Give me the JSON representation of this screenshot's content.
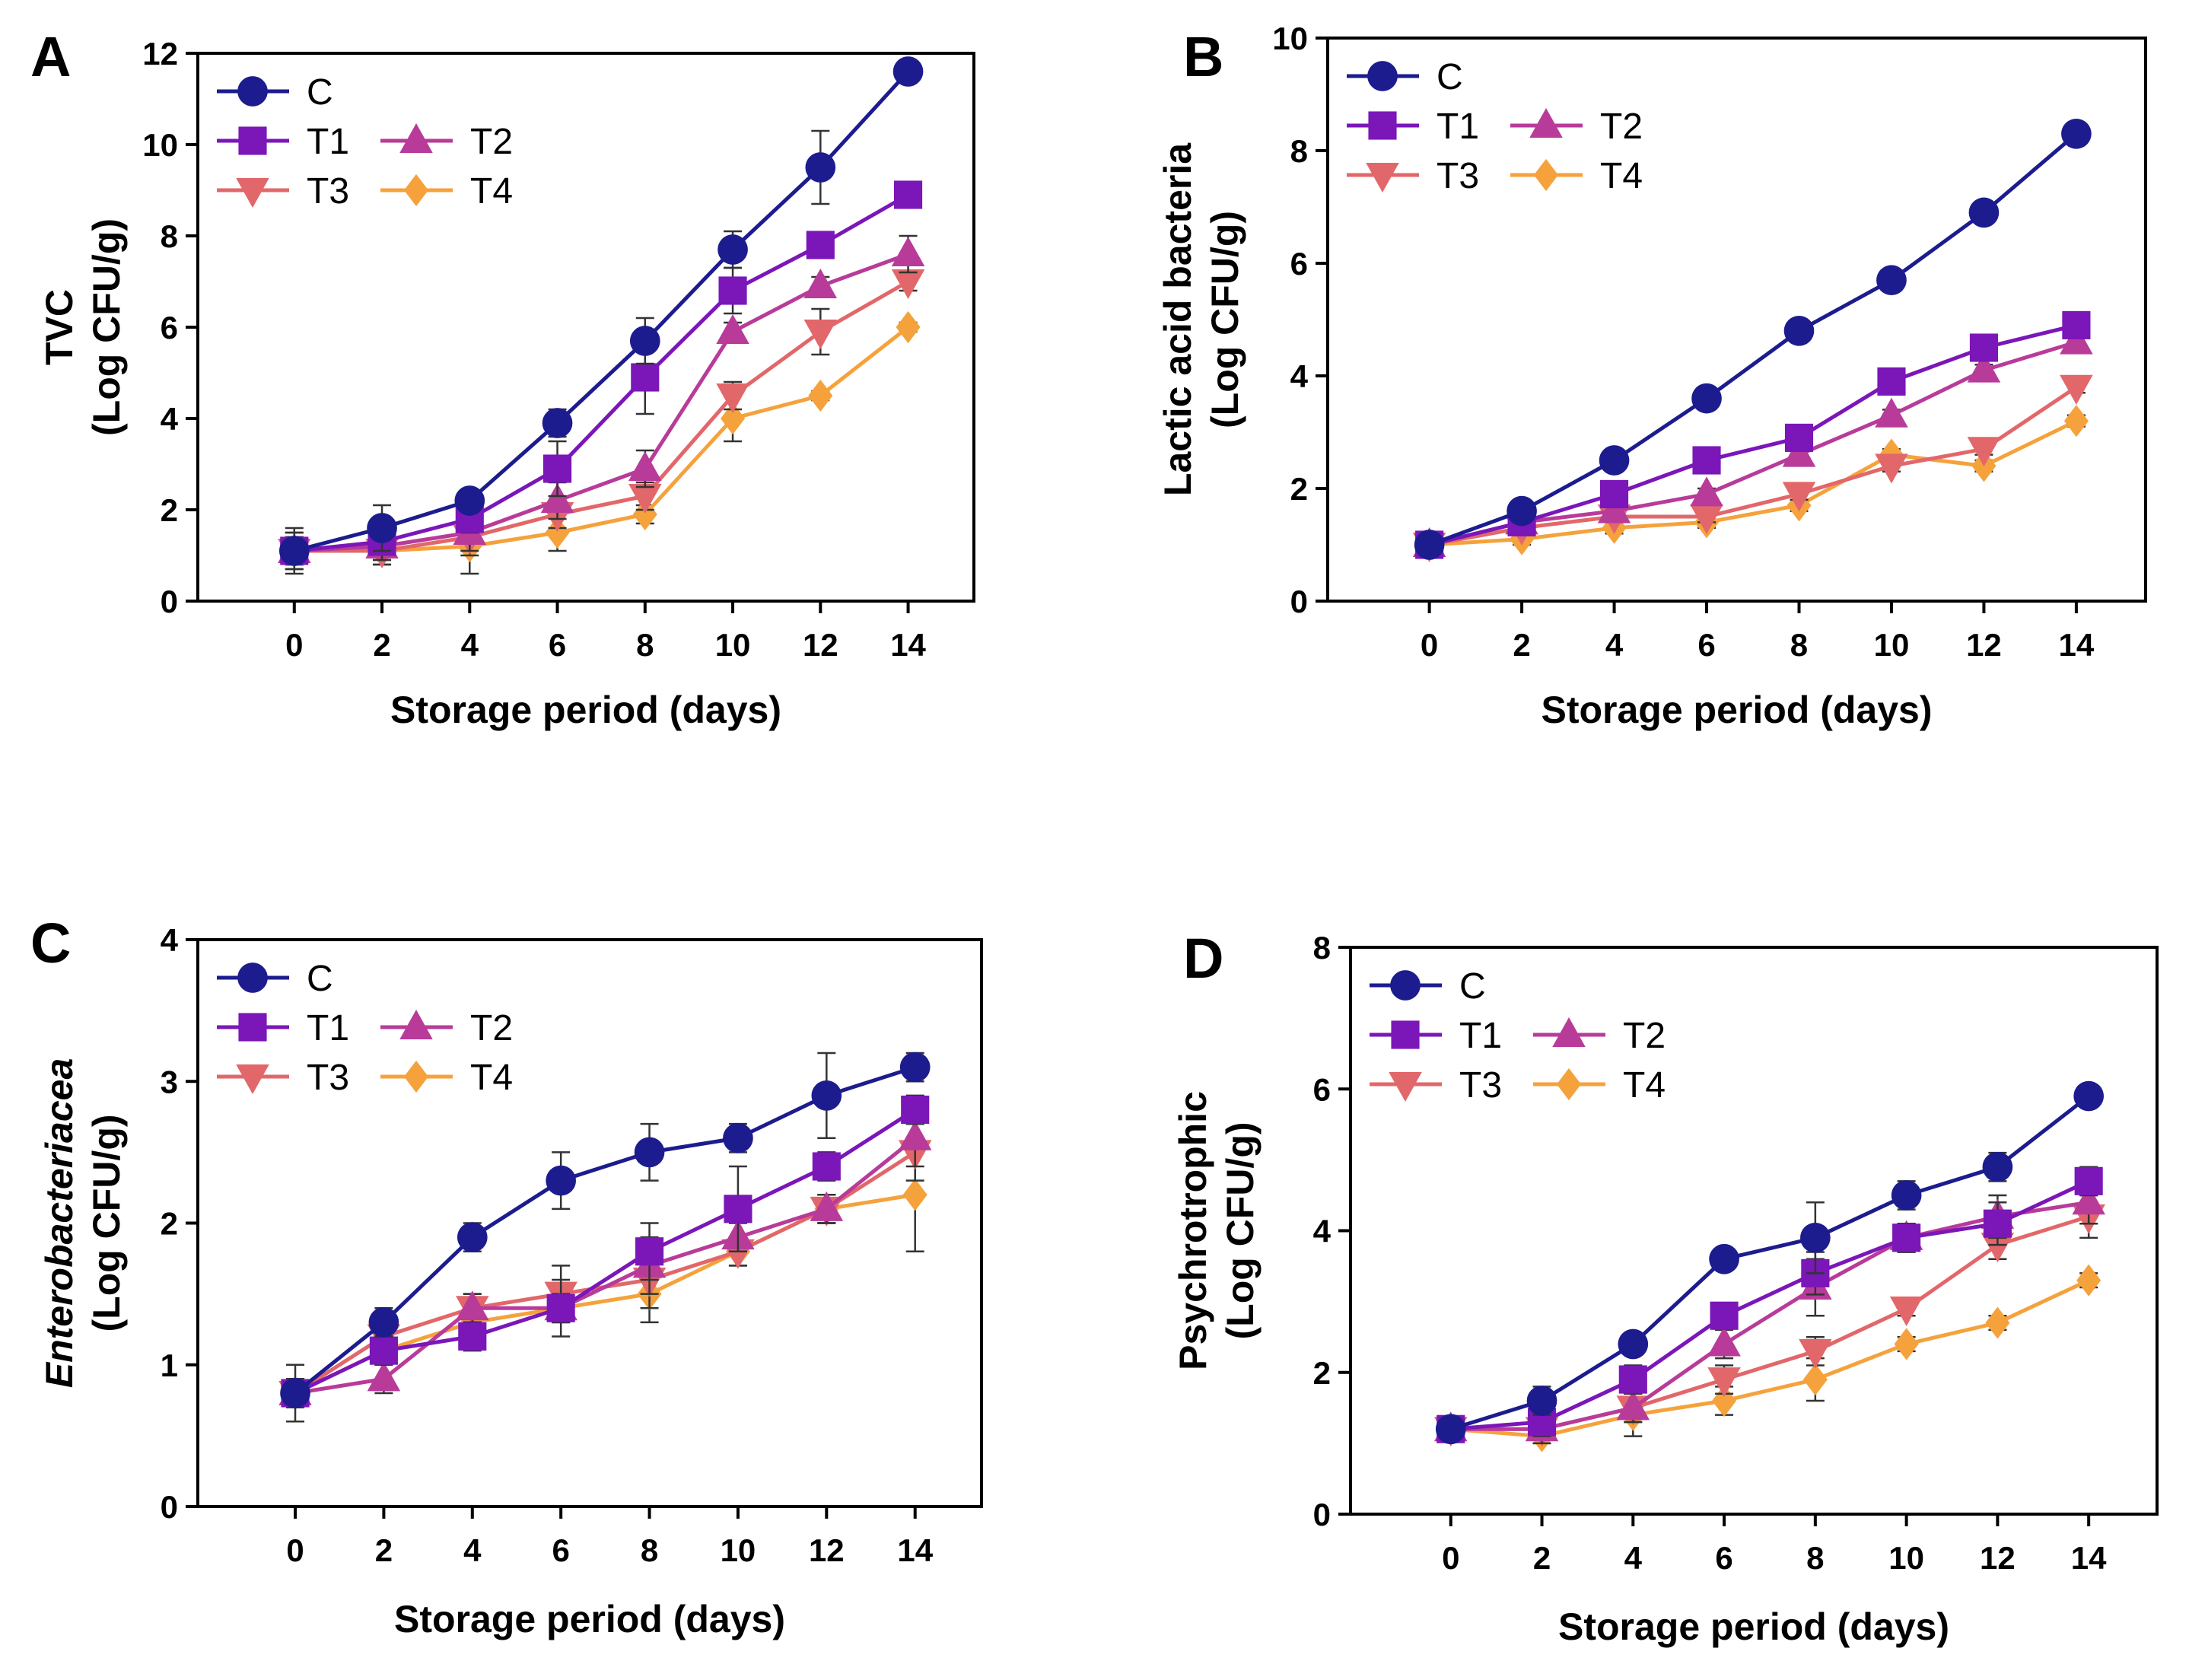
{
  "series_styles": [
    {
      "name": "C",
      "color": "#1c1c8f",
      "marker": "circle"
    },
    {
      "name": "T1",
      "color": "#7b16b8",
      "marker": "square"
    },
    {
      "name": "T2",
      "color": "#b83b9a",
      "marker": "triangle-up"
    },
    {
      "name": "T3",
      "color": "#e2676a",
      "marker": "triangle-down"
    },
    {
      "name": "T4",
      "color": "#f5a23c",
      "marker": "diamond"
    }
  ],
  "chart_data": [
    {
      "panel": "A",
      "type": "line",
      "xlabel": "Storage period (days)",
      "ylabel_lines": [
        "TVC",
        "(Log CFU/g)"
      ],
      "ylabel_italic_first": false,
      "x": [
        0,
        2,
        4,
        6,
        8,
        10,
        12,
        14
      ],
      "xticks": [
        "0",
        "2",
        "4",
        "6",
        "8",
        "10",
        "12",
        "14"
      ],
      "ylim": [
        0,
        12
      ],
      "yticks": [
        0,
        2,
        4,
        6,
        8,
        10,
        12
      ],
      "series": [
        {
          "name": "C",
          "values": [
            1.1,
            1.6,
            2.2,
            3.9,
            5.7,
            7.7,
            9.5,
            11.6
          ],
          "errors": [
            0.5,
            0.5,
            0.1,
            0.3,
            0.5,
            0.4,
            0.8,
            0.1
          ]
        },
        {
          "name": "T1",
          "values": [
            1.1,
            1.3,
            1.8,
            2.9,
            4.9,
            6.8,
            7.8,
            8.9
          ],
          "errors": [
            0.4,
            0.4,
            0.3,
            0.6,
            0.8,
            0.5,
            0.2,
            0.1
          ]
        },
        {
          "name": "T2",
          "values": [
            1.1,
            1.2,
            1.5,
            2.2,
            2.9,
            5.9,
            6.9,
            7.6
          ],
          "errors": [
            0.3,
            0.3,
            0.4,
            0.4,
            0.4,
            0.2,
            0.2,
            0.4
          ]
        },
        {
          "name": "T3",
          "values": [
            1.1,
            1.1,
            1.4,
            1.9,
            2.3,
            4.5,
            5.9,
            7.0
          ],
          "errors": [
            0.3,
            0.3,
            0.4,
            0.3,
            0.3,
            0.3,
            0.5,
            0.2
          ]
        },
        {
          "name": "T4",
          "values": [
            1.1,
            1.1,
            1.2,
            1.5,
            1.9,
            4.0,
            4.5,
            6.0
          ],
          "errors": [
            0.4,
            0.3,
            0.6,
            0.4,
            0.2,
            0.5,
            0.1,
            0.1
          ]
        }
      ]
    },
    {
      "panel": "B",
      "type": "line",
      "xlabel": "Storage period (days)",
      "ylabel_lines": [
        "Lactic acid bacteria",
        "(Log CFU/g)"
      ],
      "ylabel_italic_first": false,
      "x": [
        0,
        2,
        4,
        6,
        8,
        10,
        12,
        14
      ],
      "xticks": [
        "0",
        "2",
        "4",
        "6",
        "8",
        "10",
        "12",
        "14"
      ],
      "ylim": [
        0,
        10
      ],
      "yticks": [
        0,
        2,
        4,
        6,
        8,
        10
      ],
      "series": [
        {
          "name": "C",
          "values": [
            1.0,
            1.6,
            2.5,
            3.6,
            4.8,
            5.7,
            6.9,
            8.3
          ],
          "errors": [
            0.1,
            0.1,
            0.1,
            0.1,
            0.1,
            0.1,
            0.1,
            0.1
          ]
        },
        {
          "name": "T1",
          "values": [
            1.0,
            1.4,
            1.9,
            2.5,
            2.9,
            3.9,
            4.5,
            4.9
          ],
          "errors": [
            0.1,
            0.1,
            0.1,
            0.1,
            0.1,
            0.1,
            0.1,
            0.1
          ]
        },
        {
          "name": "T2",
          "values": [
            1.0,
            1.4,
            1.6,
            1.9,
            2.6,
            3.3,
            4.1,
            4.6
          ],
          "errors": [
            0.1,
            0.1,
            0.1,
            0.1,
            0.1,
            0.1,
            0.1,
            0.1
          ]
        },
        {
          "name": "T3",
          "values": [
            1.0,
            1.3,
            1.5,
            1.5,
            1.9,
            2.4,
            2.7,
            3.8
          ],
          "errors": [
            0.1,
            0.1,
            0.1,
            0.1,
            0.1,
            0.1,
            0.1,
            0.1
          ]
        },
        {
          "name": "T4",
          "values": [
            1.0,
            1.1,
            1.3,
            1.4,
            1.7,
            2.6,
            2.4,
            3.2
          ],
          "errors": [
            0.1,
            0.1,
            0.1,
            0.1,
            0.1,
            0.1,
            0.1,
            0.1
          ]
        }
      ]
    },
    {
      "panel": "C",
      "type": "line",
      "xlabel": "Storage period (days)",
      "ylabel_lines": [
        "Enterobacteriacea",
        "(Log CFU/g)"
      ],
      "ylabel_italic_first": true,
      "x": [
        0,
        2,
        4,
        6,
        8,
        10,
        12,
        14
      ],
      "xticks": [
        "0",
        "2",
        "4",
        "6",
        "8",
        "10",
        "12",
        "14"
      ],
      "ylim": [
        0,
        4
      ],
      "yticks": [
        0,
        1,
        2,
        3,
        4
      ],
      "series": [
        {
          "name": "C",
          "values": [
            0.8,
            1.3,
            1.9,
            2.3,
            2.5,
            2.6,
            2.9,
            3.1
          ],
          "errors": [
            0.2,
            0.1,
            0.1,
            0.2,
            0.2,
            0.1,
            0.3,
            0.1
          ]
        },
        {
          "name": "T1",
          "values": [
            0.8,
            1.1,
            1.2,
            1.4,
            1.8,
            2.1,
            2.4,
            2.8
          ],
          "errors": [
            0.1,
            0.1,
            0.1,
            0.2,
            0.2,
            0.3,
            0.1,
            0.1
          ]
        },
        {
          "name": "T2",
          "values": [
            0.8,
            0.9,
            1.4,
            1.4,
            1.7,
            1.9,
            2.1,
            2.6
          ],
          "errors": [
            0.1,
            0.1,
            0.1,
            0.1,
            0.2,
            0.1,
            0.1,
            0.2
          ]
        },
        {
          "name": "T3",
          "values": [
            0.8,
            1.2,
            1.4,
            1.5,
            1.6,
            1.8,
            2.1,
            2.5
          ],
          "errors": [
            0.1,
            0.1,
            0.1,
            0.2,
            0.2,
            0.1,
            0.1,
            0.2
          ]
        },
        {
          "name": "T4",
          "values": [
            0.8,
            1.1,
            1.3,
            1.4,
            1.5,
            1.8,
            2.1,
            2.2
          ],
          "errors": [
            0.1,
            0.1,
            0.1,
            0.1,
            0.2,
            0.1,
            0.1,
            0.4
          ]
        }
      ]
    },
    {
      "panel": "D",
      "type": "line",
      "xlabel": "Storage period (days)",
      "ylabel_lines": [
        "Psychrotrophic",
        "(Log CFU/g)"
      ],
      "ylabel_italic_first": false,
      "x": [
        0,
        2,
        4,
        6,
        8,
        10,
        12,
        14
      ],
      "xticks": [
        "0",
        "2",
        "4",
        "6",
        "8",
        "10",
        "12",
        "14"
      ],
      "ylim": [
        0,
        8
      ],
      "yticks": [
        0,
        2,
        4,
        6,
        8
      ],
      "series": [
        {
          "name": "C",
          "values": [
            1.2,
            1.6,
            2.4,
            3.6,
            3.9,
            4.5,
            4.9,
            5.9
          ],
          "errors": [
            0.1,
            0.2,
            0.1,
            0.1,
            0.5,
            0.2,
            0.2,
            0.1
          ]
        },
        {
          "name": "T1",
          "values": [
            1.2,
            1.3,
            1.9,
            2.8,
            3.4,
            3.9,
            4.1,
            4.7
          ],
          "errors": [
            0.1,
            0.2,
            0.2,
            0.1,
            0.3,
            0.2,
            0.3,
            0.2
          ]
        },
        {
          "name": "T2",
          "values": [
            1.2,
            1.2,
            1.5,
            2.4,
            3.2,
            3.9,
            4.2,
            4.4
          ],
          "errors": [
            0.1,
            0.2,
            0.2,
            0.2,
            0.4,
            0.2,
            0.3,
            0.3
          ]
        },
        {
          "name": "T3",
          "values": [
            1.2,
            1.2,
            1.5,
            1.9,
            2.3,
            2.9,
            3.8,
            4.2
          ],
          "errors": [
            0.1,
            0.1,
            0.2,
            0.2,
            0.2,
            0.1,
            0.2,
            0.3
          ]
        },
        {
          "name": "T4",
          "values": [
            1.2,
            1.1,
            1.4,
            1.6,
            1.9,
            2.4,
            2.7,
            3.3
          ],
          "errors": [
            0.1,
            0.1,
            0.3,
            0.2,
            0.3,
            0.1,
            0.1,
            0.1
          ]
        }
      ]
    }
  ]
}
